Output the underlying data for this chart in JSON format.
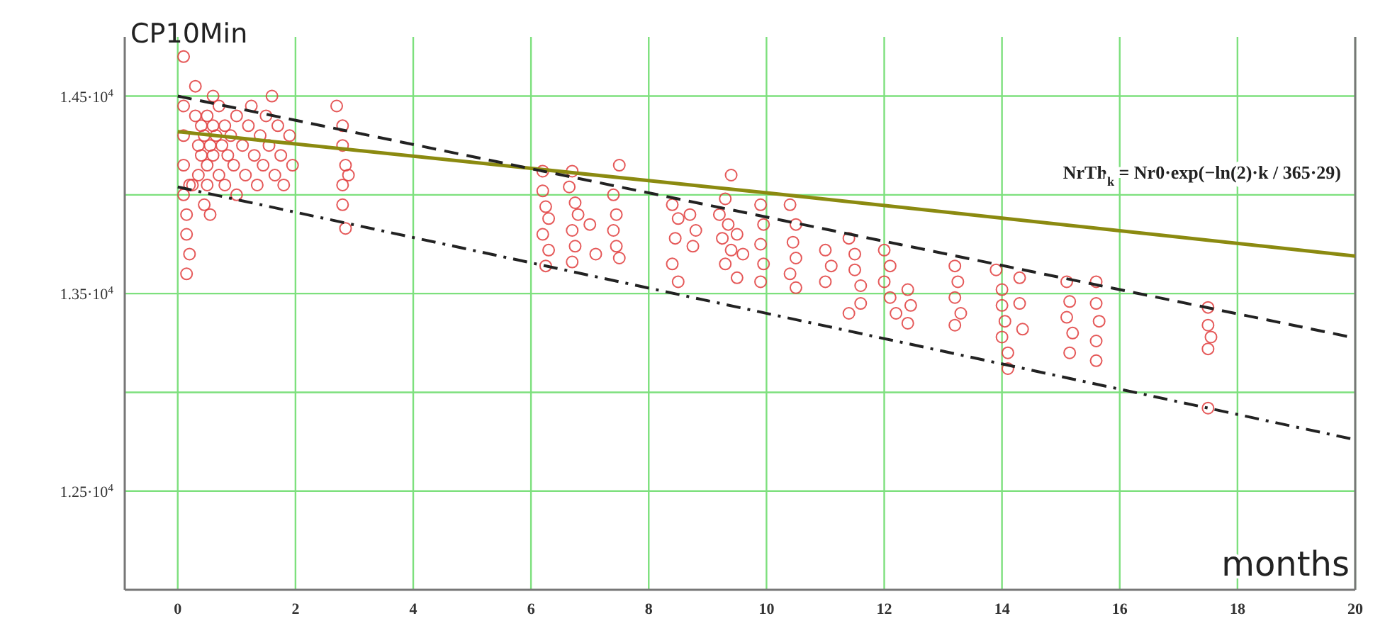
{
  "chart_data": {
    "type": "scatter",
    "xlabel": "months",
    "ylabel": "CP10Min",
    "annotations": [
      "NrTh$_{k}$ = Nr0·exp(−ln(2)·k / 365·29)"
    ],
    "xlim": [
      -0.9,
      20
    ],
    "ylim": [
      12000,
      14800
    ],
    "xticks": [
      0,
      2,
      4,
      6,
      8,
      10,
      12,
      14,
      16,
      18,
      20
    ],
    "yticks": [
      {
        "value": 12500,
        "label": "1.25·10$^{4}$"
      },
      {
        "value": 13000,
        "label": null
      },
      {
        "value": 13500,
        "label": "1.35·10$^{4}$"
      },
      {
        "value": 14000,
        "label": null
      },
      {
        "value": 14500,
        "label": "1.45·10$^{4}$"
      }
    ],
    "grid": true,
    "marker": "circle",
    "series": [
      {
        "color": "#e03c3c",
        "x": [
          0.1,
          0.1,
          0.1,
          0.1,
          0.1,
          0.15,
          0.15,
          0.2,
          0.15,
          0.2,
          0.3,
          0.3,
          0.35,
          0.35,
          0.4,
          0.4,
          0.45,
          0.5,
          0.5,
          0.5,
          0.55,
          0.6,
          0.6,
          0.65,
          0.7,
          0.7,
          0.75,
          0.8,
          0.8,
          0.85,
          0.9,
          0.95,
          1.0,
          1.0,
          1.1,
          1.15,
          1.2,
          1.25,
          1.3,
          1.35,
          1.4,
          1.45,
          1.5,
          1.55,
          1.6,
          1.65,
          1.7,
          1.75,
          1.8,
          1.9,
          1.95,
          0.45,
          0.6,
          0.25,
          0.55,
          2.7,
          2.8,
          2.8,
          2.85,
          2.8,
          2.9,
          2.8,
          2.85,
          6.2,
          6.2,
          6.25,
          6.3,
          6.2,
          6.3,
          6.25,
          6.7,
          6.65,
          6.75,
          6.8,
          6.7,
          6.75,
          6.7,
          7.0,
          7.1,
          7.5,
          7.4,
          7.45,
          7.4,
          7.45,
          7.5,
          8.4,
          8.5,
          8.45,
          8.4,
          8.5,
          8.7,
          8.8,
          8.75,
          9.4,
          9.3,
          9.2,
          9.35,
          9.25,
          9.4,
          9.3,
          9.5,
          9.5,
          9.6,
          9.9,
          9.95,
          9.9,
          9.95,
          9.9,
          10.4,
          10.5,
          10.45,
          10.5,
          10.4,
          10.5,
          11.0,
          11.1,
          11.0,
          11.4,
          11.5,
          11.5,
          11.6,
          11.6,
          11.4,
          12.0,
          12.1,
          12.0,
          12.1,
          12.2,
          12.4,
          12.45,
          12.4,
          13.2,
          13.25,
          13.2,
          13.3,
          13.2,
          13.9,
          14.0,
          14.0,
          14.05,
          14.0,
          14.1,
          14.1,
          14.3,
          14.3,
          14.35,
          15.1,
          15.15,
          15.1,
          15.2,
          15.15,
          15.6,
          15.6,
          15.65,
          15.6,
          15.6,
          17.5,
          17.5,
          17.55,
          17.5,
          17.5
        ],
        "values": [
          14700,
          14450,
          14300,
          14150,
          14000,
          13900,
          13800,
          13700,
          13600,
          14050,
          14550,
          14400,
          14250,
          14100,
          14350,
          14200,
          14300,
          14400,
          14150,
          14050,
          14250,
          14350,
          14200,
          14300,
          14450,
          14100,
          14250,
          14350,
          14050,
          14200,
          14300,
          14150,
          14400,
          14000,
          14250,
          14100,
          14350,
          14450,
          14200,
          14050,
          14300,
          14150,
          14400,
          14250,
          14500,
          14100,
          14350,
          14200,
          14050,
          14300,
          14150,
          13950,
          14500,
          14050,
          13900,
          14450,
          14350,
          14250,
          14150,
          14050,
          14100,
          13950,
          13830,
          14120,
          14020,
          13940,
          13880,
          13800,
          13720,
          13640,
          14120,
          14040,
          13960,
          13900,
          13820,
          13740,
          13660,
          13850,
          13700,
          14150,
          14000,
          13900,
          13820,
          13740,
          13680,
          13950,
          13880,
          13780,
          13650,
          13560,
          13900,
          13820,
          13740,
          14100,
          13980,
          13900,
          13850,
          13780,
          13720,
          13650,
          13580,
          13800,
          13700,
          13950,
          13850,
          13750,
          13650,
          13560,
          13950,
          13850,
          13760,
          13680,
          13600,
          13530,
          13720,
          13640,
          13560,
          13780,
          13700,
          13620,
          13540,
          13450,
          13400,
          13720,
          13640,
          13560,
          13480,
          13400,
          13520,
          13440,
          13350,
          13640,
          13560,
          13480,
          13400,
          13340,
          13620,
          13520,
          13440,
          13360,
          13280,
          13200,
          13120,
          13580,
          13450,
          13320,
          13560,
          13460,
          13380,
          13300,
          13200,
          13560,
          13450,
          13360,
          13260,
          13160,
          13430,
          13340,
          13280,
          13220,
          12920
        ]
      },
      {
        "type": "line",
        "color": "#8b8a10",
        "line_style": "solid",
        "marker": "none",
        "x": [
          0,
          10,
          20
        ],
        "values": [
          14320,
          14010,
          13690
        ]
      },
      {
        "type": "line",
        "color": "#222222",
        "line_style": "dashed",
        "marker": "none",
        "x": [
          0,
          20
        ],
        "values": [
          14500,
          13275
        ]
      },
      {
        "type": "line",
        "color": "#222222",
        "line_style": "dashdot",
        "marker": "none",
        "x": [
          0,
          20
        ],
        "values": [
          14040,
          12760
        ]
      }
    ]
  }
}
